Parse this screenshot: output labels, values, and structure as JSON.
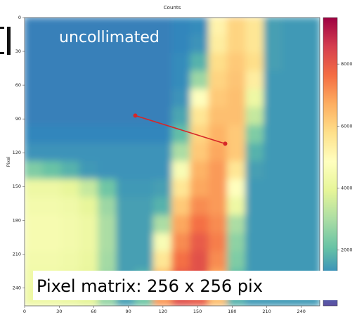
{
  "chart_data": {
    "type": "heatmap",
    "title": "Counts",
    "y_label": "Pixel",
    "colormap": "Spectral_r",
    "clim": [
      200,
      9500
    ],
    "colorbar_ticks": [
      2000,
      4000,
      6000,
      8000
    ],
    "xlim": [
      0,
      256
    ],
    "ylim": [
      256,
      0
    ],
    "xticks": [
      0,
      30,
      60,
      90,
      120,
      150,
      180,
      210,
      240
    ],
    "yticks": [
      0,
      30,
      60,
      90,
      120,
      150,
      180,
      210,
      240
    ],
    "x_edges": [
      0,
      16,
      32,
      48,
      64,
      80,
      96,
      112,
      128,
      144,
      160,
      176,
      192,
      208,
      224,
      240,
      256
    ],
    "y_edges": [
      0,
      16,
      32,
      48,
      64,
      80,
      96,
      112,
      128,
      144,
      160,
      176,
      192,
      208,
      224,
      240,
      256
    ],
    "values": [
      [
        1000,
        1000,
        1000,
        1000,
        1000,
        1000,
        1000,
        1000,
        1100,
        1200,
        5200,
        6000,
        5600,
        1500,
        1400,
        1400
      ],
      [
        1000,
        1000,
        1000,
        1000,
        1000,
        1000,
        1000,
        1000,
        1100,
        1300,
        5400,
        6000,
        5600,
        1500,
        1400,
        1400
      ],
      [
        1000,
        1000,
        1000,
        1000,
        1000,
        1000,
        1000,
        1000,
        1200,
        1800,
        5800,
        6200,
        5800,
        1500,
        1400,
        1400
      ],
      [
        1000,
        1000,
        1000,
        1000,
        1000,
        1000,
        1000,
        1000,
        1200,
        2800,
        6000,
        6300,
        5400,
        1400,
        1400,
        1400
      ],
      [
        1000,
        1000,
        1000,
        1000,
        1000,
        1000,
        1000,
        1000,
        1300,
        4800,
        6200,
        6400,
        4200,
        1400,
        1400,
        1400
      ],
      [
        1000,
        1000,
        1000,
        1000,
        1000,
        1000,
        1000,
        1000,
        1600,
        5600,
        6400,
        6400,
        3400,
        1400,
        1400,
        1400
      ],
      [
        1100,
        1100,
        1100,
        1100,
        1100,
        1100,
        1100,
        1100,
        2000,
        6000,
        6600,
        6200,
        2400,
        1400,
        1400,
        1400
      ],
      [
        1300,
        1300,
        1300,
        1300,
        1300,
        1300,
        1300,
        1300,
        3000,
        6200,
        6800,
        6200,
        1800,
        1400,
        1400,
        1400
      ],
      [
        2400,
        2100,
        1800,
        1400,
        1300,
        1300,
        1300,
        1300,
        4600,
        6600,
        7000,
        5600,
        1500,
        1400,
        1400,
        1400
      ],
      [
        4200,
        4200,
        4000,
        3400,
        2200,
        1400,
        1400,
        1500,
        5600,
        6800,
        7000,
        4800,
        1400,
        1400,
        1400,
        1400
      ],
      [
        4400,
        4400,
        4300,
        4000,
        2800,
        1500,
        1500,
        1800,
        6200,
        7200,
        7000,
        4200,
        1400,
        1400,
        1400,
        1400
      ],
      [
        4500,
        4500,
        4400,
        4200,
        3000,
        1500,
        1500,
        3000,
        6800,
        7600,
        7200,
        3000,
        1400,
        1400,
        1400,
        1400
      ],
      [
        4500,
        4500,
        4400,
        4200,
        3000,
        1500,
        1500,
        4600,
        7200,
        8000,
        7400,
        2600,
        1400,
        1400,
        1400,
        1400
      ],
      [
        4400,
        4400,
        4300,
        4100,
        2900,
        1500,
        1500,
        5600,
        7600,
        8200,
        7200,
        2400,
        1400,
        1400,
        1400,
        1400
      ],
      [
        4300,
        4300,
        4200,
        4000,
        2800,
        1500,
        1800,
        6400,
        8000,
        8200,
        6800,
        2000,
        1400,
        1400,
        1400,
        1400
      ],
      [
        4200,
        4200,
        4100,
        3900,
        2700,
        1500,
        2200,
        7000,
        8200,
        8000,
        6400,
        1800,
        1400,
        1400,
        1400,
        1400
      ]
    ],
    "marker_line": {
      "x": [
        96,
        174
      ],
      "y": [
        87,
        112
      ],
      "color": "#d62728"
    },
    "annotations": [
      "uncollimated",
      "Pixel matrix: 256 x 256 pix"
    ]
  }
}
